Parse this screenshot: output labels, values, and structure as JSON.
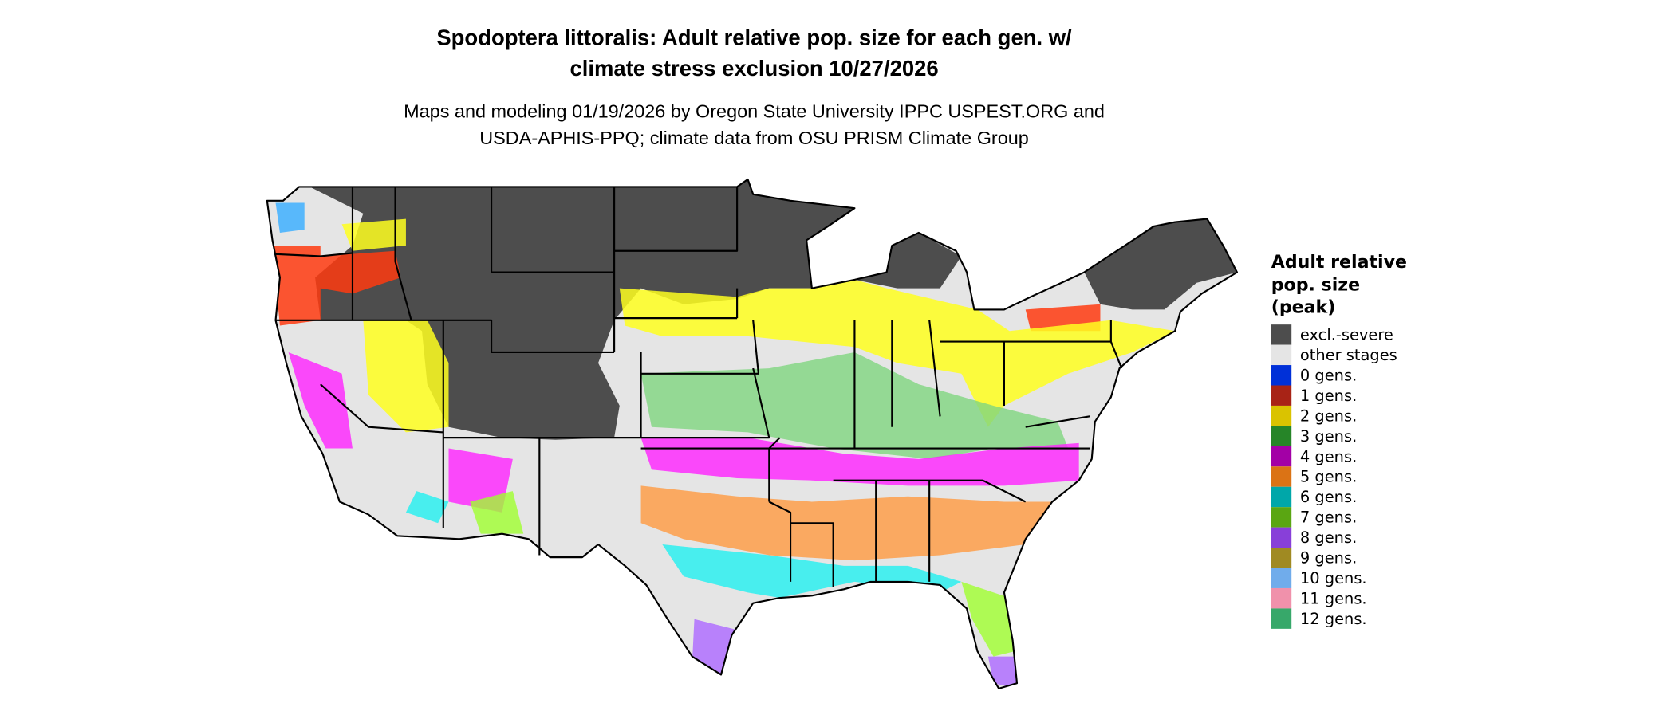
{
  "title": {
    "line1": "Spodoptera littoralis: Adult relative pop. size for each gen. w/",
    "line2": "climate stress exclusion 10/27/2026"
  },
  "subtitle": {
    "line1": "Maps and modeling 01/19/2026 by Oregon State University IPPC USPEST.ORG and",
    "line2": "USDA-APHIS-PPQ; climate data from OSU PRISM Climate Group"
  },
  "legend": {
    "title_lines": [
      "Adult relative",
      "pop. size",
      "(peak)"
    ],
    "items": [
      {
        "label": "excl.-severe",
        "color": "#4d4d4d"
      },
      {
        "label": "other stages",
        "color": "#e5e5e5"
      },
      {
        "label": "0 gens.",
        "color": "#0030d8"
      },
      {
        "label": "1 gens.",
        "color": "#a82316"
      },
      {
        "label": "2 gens.",
        "color": "#dac300"
      },
      {
        "label": "3 gens.",
        "color": "#268528"
      },
      {
        "label": "4 gens.",
        "color": "#a300a6"
      },
      {
        "label": "5 gens.",
        "color": "#db7315"
      },
      {
        "label": "6 gens.",
        "color": "#00a7a9"
      },
      {
        "label": "7 gens.",
        "color": "#5aa612"
      },
      {
        "label": "8 gens.",
        "color": "#883fd9"
      },
      {
        "label": "9 gens.",
        "color": "#a08a22"
      },
      {
        "label": "10 gens.",
        "color": "#70aceb"
      },
      {
        "label": "11 gens.",
        "color": "#f091ab"
      },
      {
        "label": "12 gens.",
        "color": "#37a86a"
      }
    ]
  },
  "map_colors": {
    "excluded": "#4d4d4d",
    "other": "#e5e5e5",
    "band_1gen": "#ff3b10",
    "band_2gen": "#ffff20",
    "band_3gen": "#7fd67f",
    "band_4gen": "#ff20ff",
    "band_5gen": "#ff9a40",
    "band_6gen": "#20f0f0",
    "band_7gen": "#a0ff30",
    "band_8gen": "#b070ff",
    "band_10gen": "#40b0ff"
  }
}
